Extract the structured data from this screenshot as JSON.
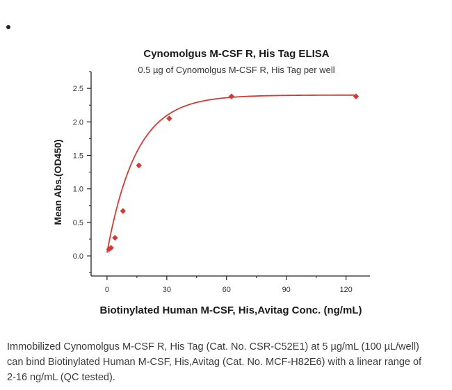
{
  "chart_data": {
    "type": "scatter",
    "title": "Cynomolgus M-CSF R, His Tag ELISA",
    "subtitle": "0.5 µg of Cynomolgus M-CSF R, His Tag per well",
    "xlabel": "Biotinylated Human M-CSF, His,Avitag Conc. (ng/mL)",
    "ylabel": "Mean Abs.(OD450)",
    "xlim": [
      -8,
      132
    ],
    "ylim": [
      -0.3,
      2.75
    ],
    "x_ticks": [
      0,
      30,
      60,
      90,
      120
    ],
    "y_ticks": [
      0.0,
      0.5,
      1.0,
      1.5,
      2.0,
      2.5
    ],
    "y_tick_labels": [
      "0.0",
      "0.5",
      "1.0",
      "1.5",
      "2.0",
      "2.5"
    ],
    "series": [
      {
        "x": [
          1.0,
          2.0,
          4.0,
          8.0,
          16.0,
          31.25,
          62.5,
          125.0
        ],
        "y": [
          0.1,
          0.12,
          0.27,
          0.67,
          1.35,
          2.05,
          2.38,
          2.38
        ]
      }
    ],
    "fit_curve": {
      "model": "exponential-rise",
      "top": 2.4,
      "bottom": 0.05,
      "rate": 0.068
    },
    "colors": {
      "marker": "#d23a34",
      "curve": "#d23a34",
      "axis": "#222222"
    },
    "grid": false,
    "legend": "none"
  },
  "caption": {
    "lines": [
      "Immobilized Cynomolgus M-CSF R, His Tag (Cat. No. CSR-C52E1) at 5 µg/mL (100 µL/well)",
      "can bind Biotinylated Human M-CSF, His,Avitag (Cat. No. MCF-H82E6) with a linear range of",
      "2-16 ng/mL (QC tested)."
    ]
  }
}
